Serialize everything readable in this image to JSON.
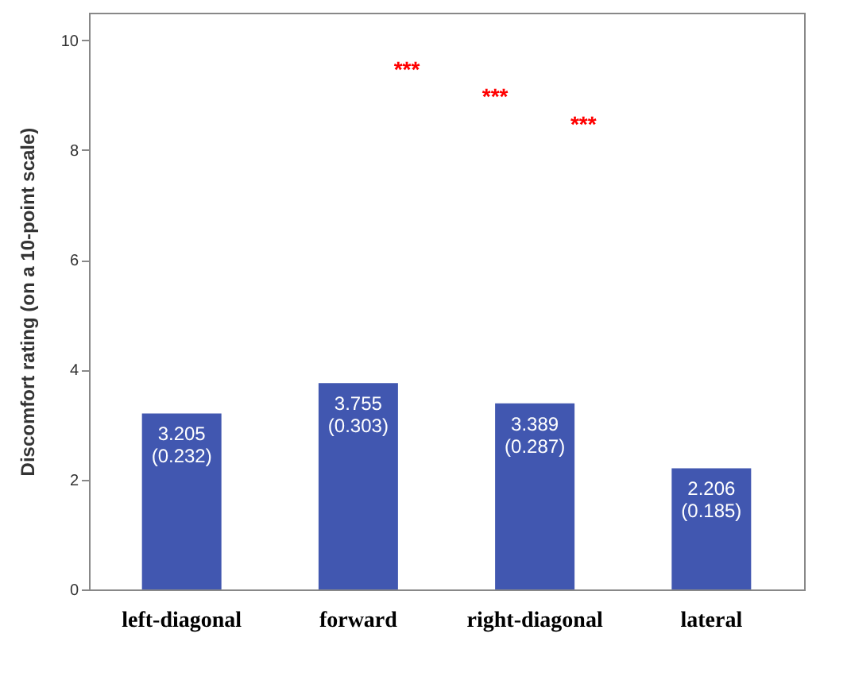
{
  "chart_data": {
    "type": "bar",
    "ylabel": "Discomfort rating (on a 10-point scale)",
    "categories": [
      "left-diagonal",
      "forward",
      "right-diagonal",
      "lateral"
    ],
    "values": [
      3.205,
      3.755,
      3.389,
      2.206
    ],
    "color": "#4157b0",
    "value_labels": [
      "3.205\n(0.232)",
      "3.755\n(0.303)",
      "3.389\n(0.287)",
      "2.206\n(0.185)"
    ],
    "ylim": [
      0,
      10.5
    ],
    "yticks": [
      0,
      2,
      4,
      6,
      8,
      10
    ],
    "grid": false,
    "annotations": [
      "***",
      "***",
      "***"
    ]
  }
}
